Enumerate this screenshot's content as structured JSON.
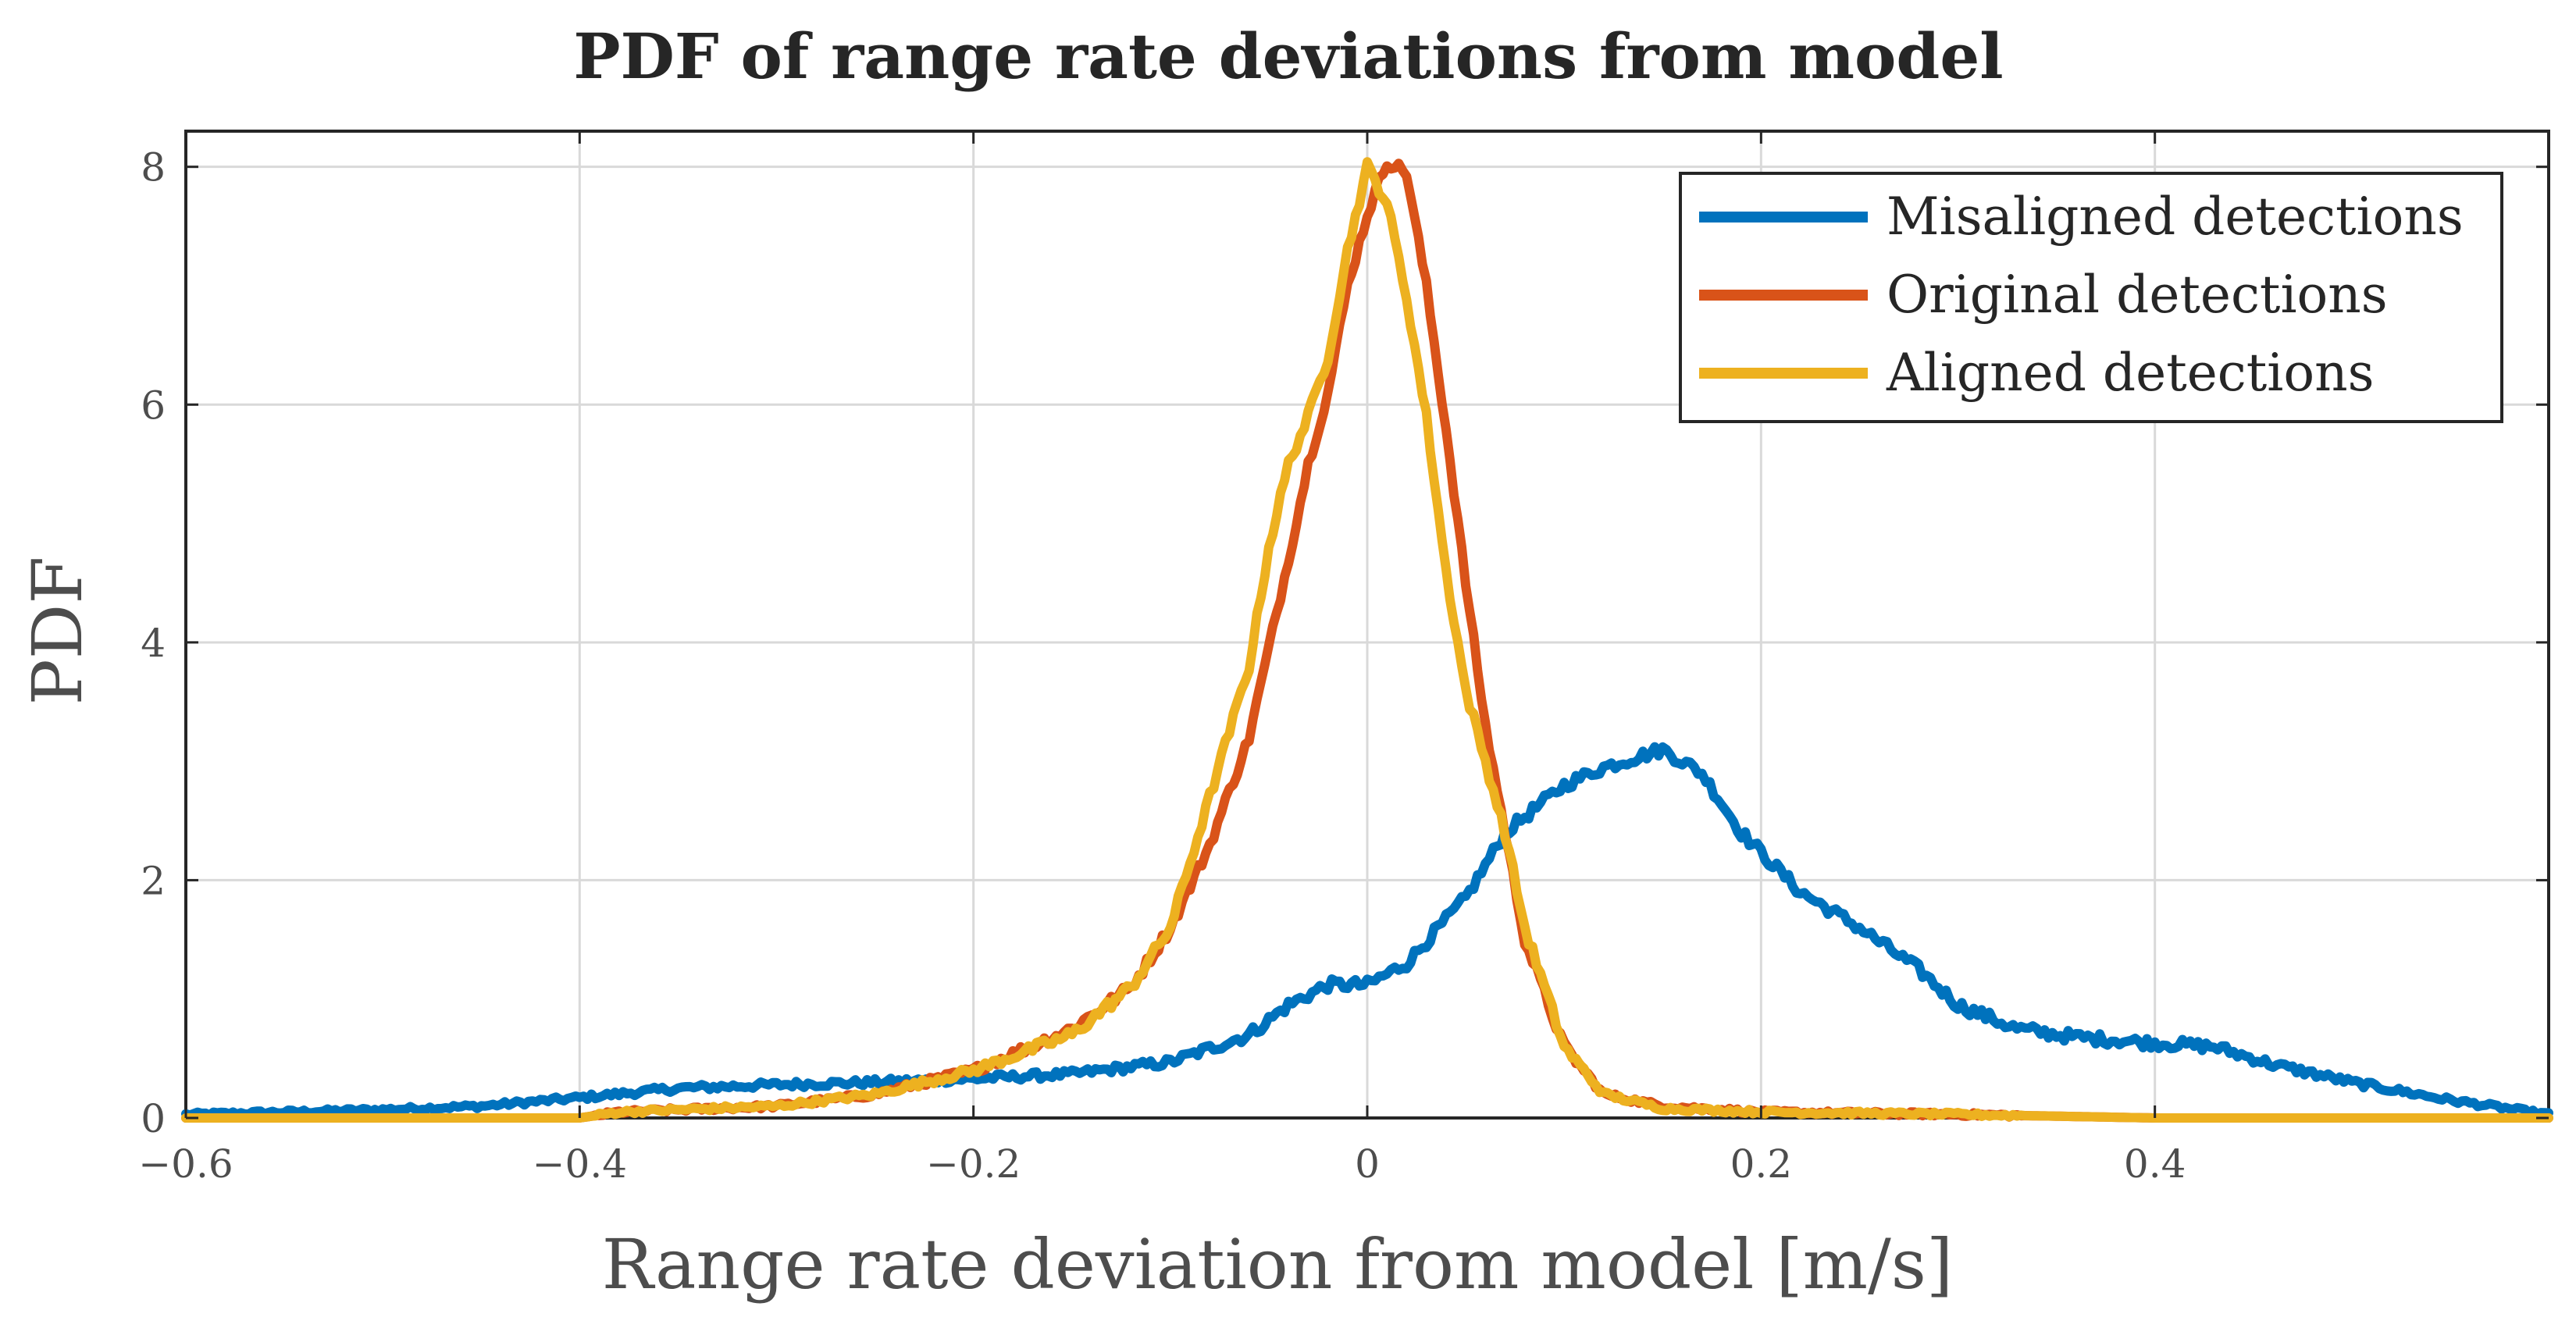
{
  "chart_data": {
    "type": "line",
    "title": "PDF of range rate deviations from model",
    "xlabel": "Range rate deviation from model [m/s]",
    "ylabel": "PDF",
    "xlim": [
      -0.6,
      0.6
    ],
    "ylim": [
      0,
      8.3
    ],
    "xticks": [
      -0.6,
      -0.4,
      -0.2,
      0,
      0.2,
      0.4
    ],
    "xtick_labels": [
      "−0.6",
      "−0.4",
      "−0.2",
      "0",
      "0.2",
      "0.4"
    ],
    "yticks": [
      0,
      2,
      4,
      6,
      8
    ],
    "ytick_labels": [
      "0",
      "2",
      "4",
      "6",
      "8"
    ],
    "grid": true,
    "legend_position": "top-right",
    "series": [
      {
        "name": "Misaligned detections",
        "color": "#0072BD",
        "points": [
          [
            -0.6,
            0.03
          ],
          [
            -0.55,
            0.05
          ],
          [
            -0.5,
            0.07
          ],
          [
            -0.45,
            0.1
          ],
          [
            -0.4,
            0.17
          ],
          [
            -0.35,
            0.25
          ],
          [
            -0.3,
            0.28
          ],
          [
            -0.25,
            0.3
          ],
          [
            -0.2,
            0.33
          ],
          [
            -0.15,
            0.37
          ],
          [
            -0.1,
            0.47
          ],
          [
            -0.06,
            0.7
          ],
          [
            -0.04,
            0.95
          ],
          [
            -0.02,
            1.12
          ],
          [
            0.0,
            1.12
          ],
          [
            0.02,
            1.3
          ],
          [
            0.05,
            1.85
          ],
          [
            0.07,
            2.4
          ],
          [
            0.1,
            2.8
          ],
          [
            0.12,
            2.95
          ],
          [
            0.15,
            3.1
          ],
          [
            0.17,
            2.9
          ],
          [
            0.19,
            2.4
          ],
          [
            0.22,
            1.9
          ],
          [
            0.25,
            1.6
          ],
          [
            0.28,
            1.25
          ],
          [
            0.3,
            0.95
          ],
          [
            0.33,
            0.75
          ],
          [
            0.36,
            0.68
          ],
          [
            0.4,
            0.63
          ],
          [
            0.43,
            0.6
          ],
          [
            0.46,
            0.45
          ],
          [
            0.5,
            0.3
          ],
          [
            0.55,
            0.15
          ],
          [
            0.6,
            0.03
          ]
        ]
      },
      {
        "name": "Original detections",
        "color": "#D95319",
        "points": [
          [
            -0.6,
            0.0
          ],
          [
            -0.4,
            0.0
          ],
          [
            -0.38,
            0.05
          ],
          [
            -0.3,
            0.1
          ],
          [
            -0.25,
            0.2
          ],
          [
            -0.2,
            0.4
          ],
          [
            -0.15,
            0.75
          ],
          [
            -0.12,
            1.1
          ],
          [
            -0.1,
            1.6
          ],
          [
            -0.08,
            2.3
          ],
          [
            -0.06,
            3.2
          ],
          [
            -0.04,
            4.7
          ],
          [
            -0.03,
            5.5
          ],
          [
            -0.02,
            6.1
          ],
          [
            -0.01,
            7.0
          ],
          [
            0.0,
            7.6
          ],
          [
            0.01,
            8.05
          ],
          [
            0.02,
            7.95
          ],
          [
            0.03,
            7.0
          ],
          [
            0.04,
            5.8
          ],
          [
            0.05,
            4.5
          ],
          [
            0.06,
            3.3
          ],
          [
            0.07,
            2.4
          ],
          [
            0.08,
            1.5
          ],
          [
            0.1,
            0.6
          ],
          [
            0.12,
            0.2
          ],
          [
            0.15,
            0.1
          ],
          [
            0.2,
            0.05
          ],
          [
            0.3,
            0.03
          ],
          [
            0.4,
            0.0
          ],
          [
            0.6,
            0.0
          ]
        ]
      },
      {
        "name": "Aligned detections",
        "color": "#EDB120",
        "points": [
          [
            -0.6,
            0.0
          ],
          [
            -0.4,
            0.0
          ],
          [
            -0.38,
            0.05
          ],
          [
            -0.3,
            0.1
          ],
          [
            -0.25,
            0.2
          ],
          [
            -0.2,
            0.4
          ],
          [
            -0.15,
            0.7
          ],
          [
            -0.12,
            1.1
          ],
          [
            -0.1,
            1.6
          ],
          [
            -0.08,
            2.7
          ],
          [
            -0.06,
            3.8
          ],
          [
            -0.05,
            4.8
          ],
          [
            -0.04,
            5.5
          ],
          [
            -0.03,
            5.9
          ],
          [
            -0.02,
            6.4
          ],
          [
            -0.01,
            7.3
          ],
          [
            0.0,
            8.0
          ],
          [
            0.01,
            7.7
          ],
          [
            0.02,
            6.9
          ],
          [
            0.03,
            5.9
          ],
          [
            0.04,
            4.6
          ],
          [
            0.05,
            3.6
          ],
          [
            0.06,
            3.0
          ],
          [
            0.07,
            2.4
          ],
          [
            0.08,
            1.6
          ],
          [
            0.1,
            0.6
          ],
          [
            0.12,
            0.2
          ],
          [
            0.15,
            0.08
          ],
          [
            0.2,
            0.05
          ],
          [
            0.3,
            0.03
          ],
          [
            0.4,
            0.0
          ],
          [
            0.6,
            0.0
          ]
        ]
      }
    ]
  }
}
